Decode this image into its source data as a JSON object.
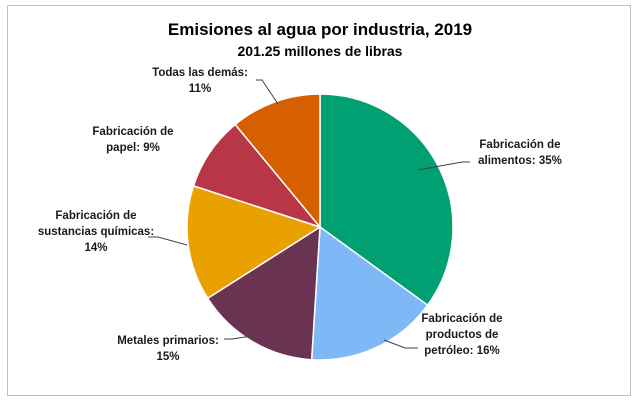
{
  "chart_data": {
    "type": "pie",
    "title": "Emisiones al agua por industria, 2019",
    "subtitle": "201.25 millones de libras",
    "slices": [
      {
        "label_lines": [
          "Fabricación de",
          "alimentos: 35%"
        ],
        "value": 35,
        "color": "#00A073"
      },
      {
        "label_lines": [
          "Fabricación de",
          "productos de",
          "petróleo: 16%"
        ],
        "value": 16,
        "color": "#7FB8F7"
      },
      {
        "label_lines": [
          "Metales primarios:",
          "15%"
        ],
        "value": 15,
        "color": "#6A3352"
      },
      {
        "label_lines": [
          "Fabricación de",
          "sustancias químicas:",
          "14%"
        ],
        "value": 14,
        "color": "#E8A100"
      },
      {
        "label_lines": [
          "Fabricación de",
          "papel: 9%"
        ],
        "value": 9,
        "color": "#B83645"
      },
      {
        "label_lines": [
          "Todas las demás:",
          "11%"
        ],
        "value": 11,
        "color": "#D65F00"
      }
    ],
    "start": "top",
    "direction": "clockwise"
  }
}
